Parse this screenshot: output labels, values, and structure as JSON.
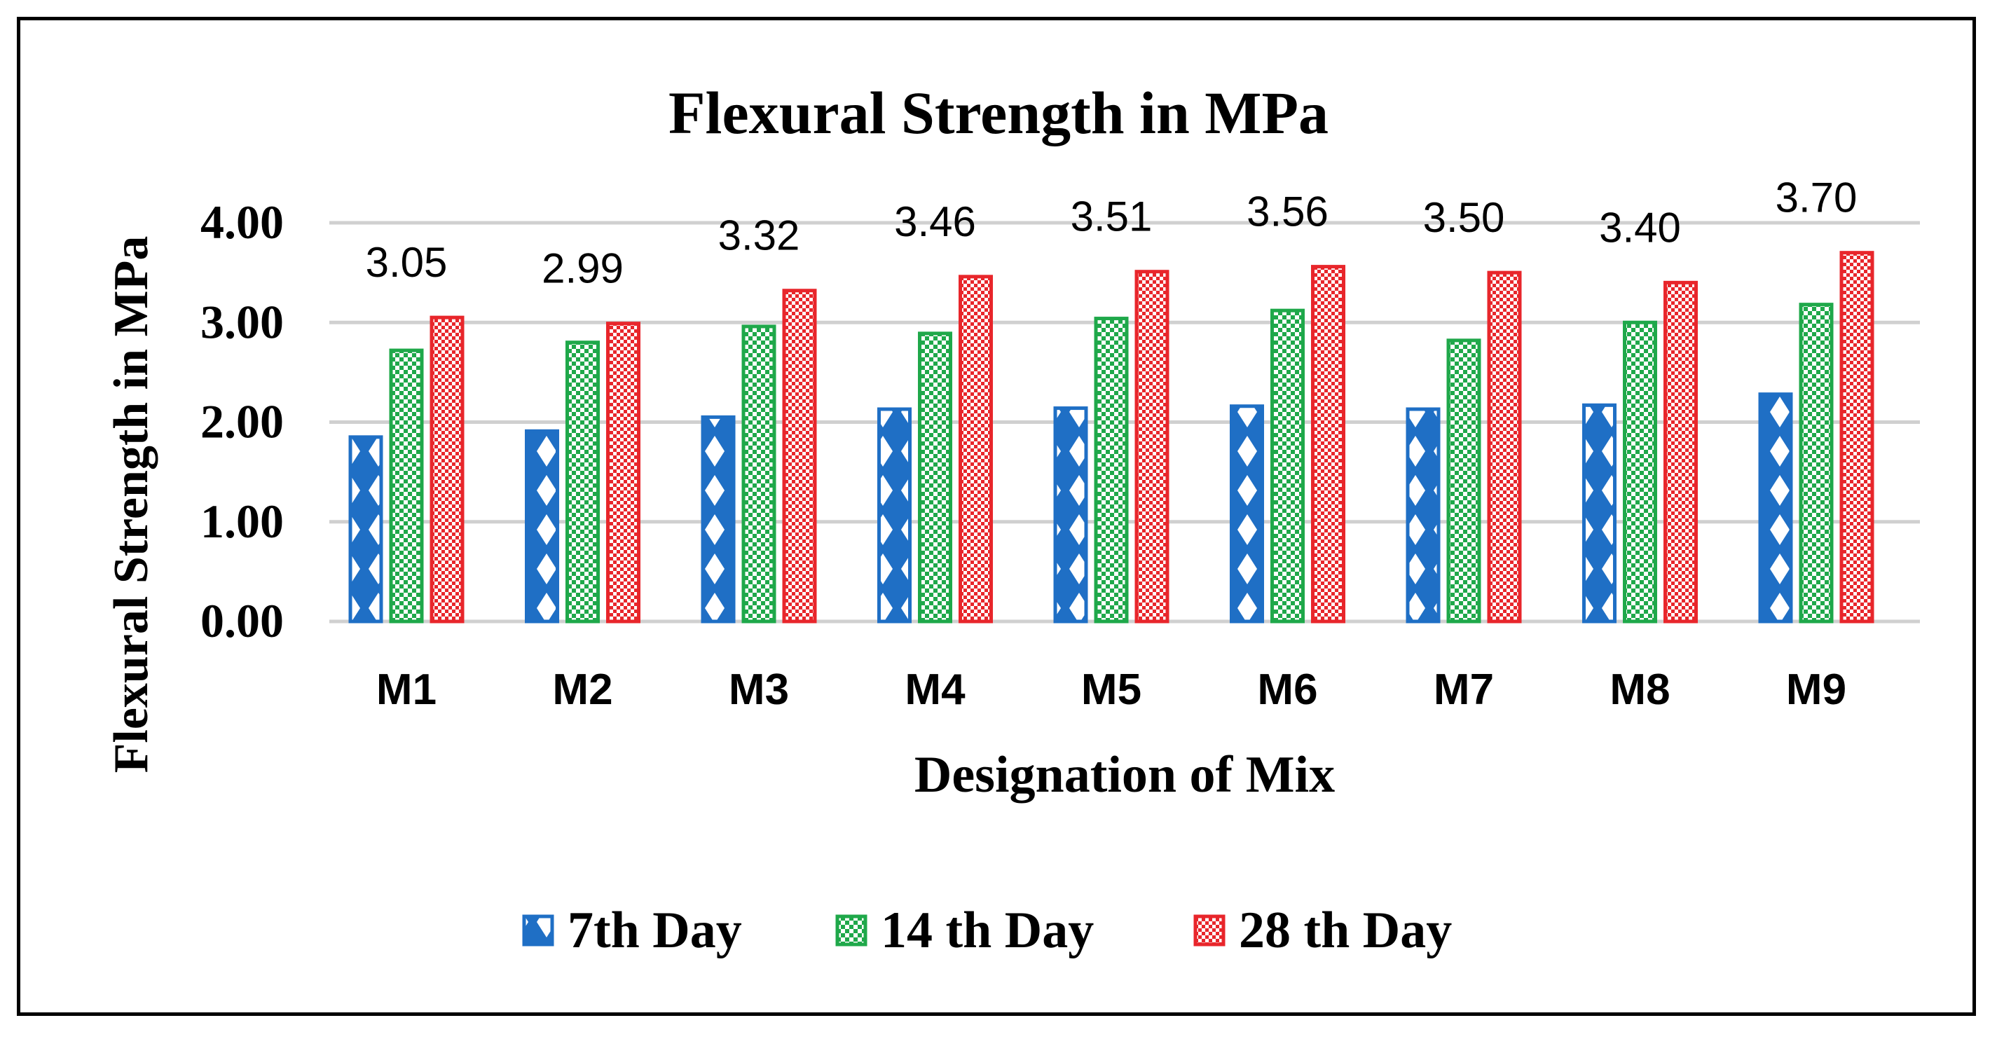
{
  "chart_data": {
    "type": "bar",
    "title": "Flexural Strength in MPa",
    "xlabel": "Designation of Mix",
    "ylabel": "Flexural Strength in MPa",
    "ylim": [
      0,
      4
    ],
    "yticks": [
      "0.00",
      "1.00",
      "2.00",
      "3.00",
      "4.00"
    ],
    "grid": true,
    "legend_position": "bottom",
    "categories": [
      "M1",
      "M2",
      "M3",
      "M4",
      "M5",
      "M6",
      "M7",
      "M8",
      "M9"
    ],
    "series": [
      {
        "name": "7th Day",
        "color": "#1f6fc5",
        "pattern": "triangles",
        "values": [
          1.85,
          1.91,
          2.05,
          2.13,
          2.14,
          2.16,
          2.13,
          2.17,
          2.28
        ]
      },
      {
        "name": "14 th Day",
        "color": "#1fa84a",
        "pattern": "checker-small",
        "values": [
          2.72,
          2.8,
          2.96,
          2.89,
          3.04,
          3.12,
          2.82,
          3.0,
          3.18
        ]
      },
      {
        "name": "28 th Day",
        "color": "#e8262b",
        "pattern": "checker-dense",
        "values": [
          3.05,
          2.99,
          3.32,
          3.46,
          3.51,
          3.56,
          3.5,
          3.4,
          3.7
        ]
      }
    ],
    "data_labels": {
      "series": "28 th Day",
      "labels": [
        "3.05",
        "2.99",
        "3.32",
        "3.46",
        "3.51",
        "3.56",
        "3.50",
        "3.40",
        "3.70"
      ]
    }
  }
}
